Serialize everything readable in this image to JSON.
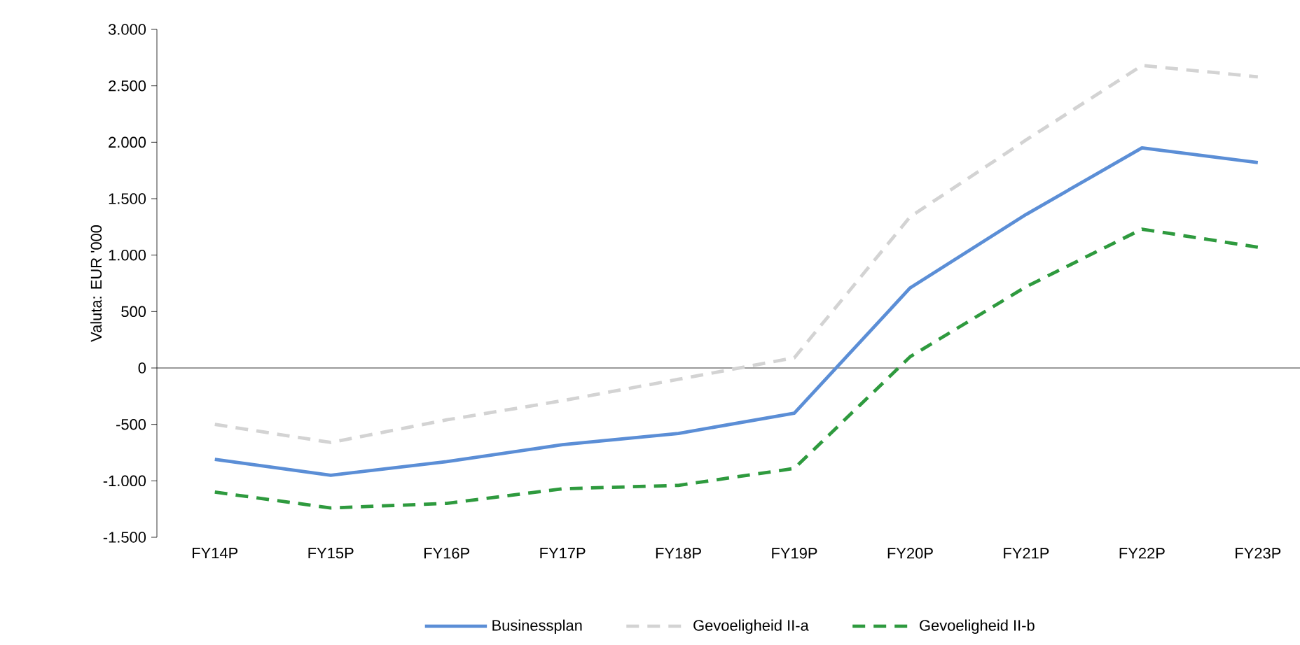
{
  "chart_data": {
    "type": "line",
    "ylabel": "Valuta: EUR '000",
    "categories": [
      "FY14P",
      "FY15P",
      "FY16P",
      "FY17P",
      "FY18P",
      "FY19P",
      "FY20P",
      "FY21P",
      "FY22P",
      "FY23P"
    ],
    "series": [
      {
        "name": "Businessplan",
        "color": "#5b8ed6",
        "line_style": "solid",
        "values": [
          -810,
          -950,
          -830,
          -680,
          -580,
          -400,
          710,
          1360,
          1950,
          1820
        ]
      },
      {
        "name": "Gevoeligheid II-a",
        "color": "#d3d3d3",
        "line_style": "dashed",
        "values": [
          -500,
          -660,
          -460,
          -290,
          -100,
          90,
          1340,
          2020,
          2680,
          2580
        ]
      },
      {
        "name": "Gevoeligheid II-b",
        "color": "#2e9a3e",
        "line_style": "dashed",
        "values": [
          -1100,
          -1240,
          -1200,
          -1070,
          -1040,
          -890,
          100,
          720,
          1230,
          1070
        ]
      }
    ],
    "ylim": [
      -1500,
      3000
    ],
    "yticks": [
      {
        "value": -1500,
        "label": "-1.500"
      },
      {
        "value": -1000,
        "label": "-1.000"
      },
      {
        "value": -500,
        "label": "-500"
      },
      {
        "value": 0,
        "label": "0"
      },
      {
        "value": 500,
        "label": "500"
      },
      {
        "value": 1000,
        "label": "1.000"
      },
      {
        "value": 1500,
        "label": "1.500"
      },
      {
        "value": 2000,
        "label": "2.000"
      },
      {
        "value": 2500,
        "label": "2.500"
      },
      {
        "value": 3000,
        "label": "3.000"
      }
    ],
    "ref_lines": [
      {
        "axis": "y",
        "value": 0,
        "color": "#000000"
      }
    ],
    "grid": false,
    "legend": "bottom",
    "marker": "none"
  }
}
